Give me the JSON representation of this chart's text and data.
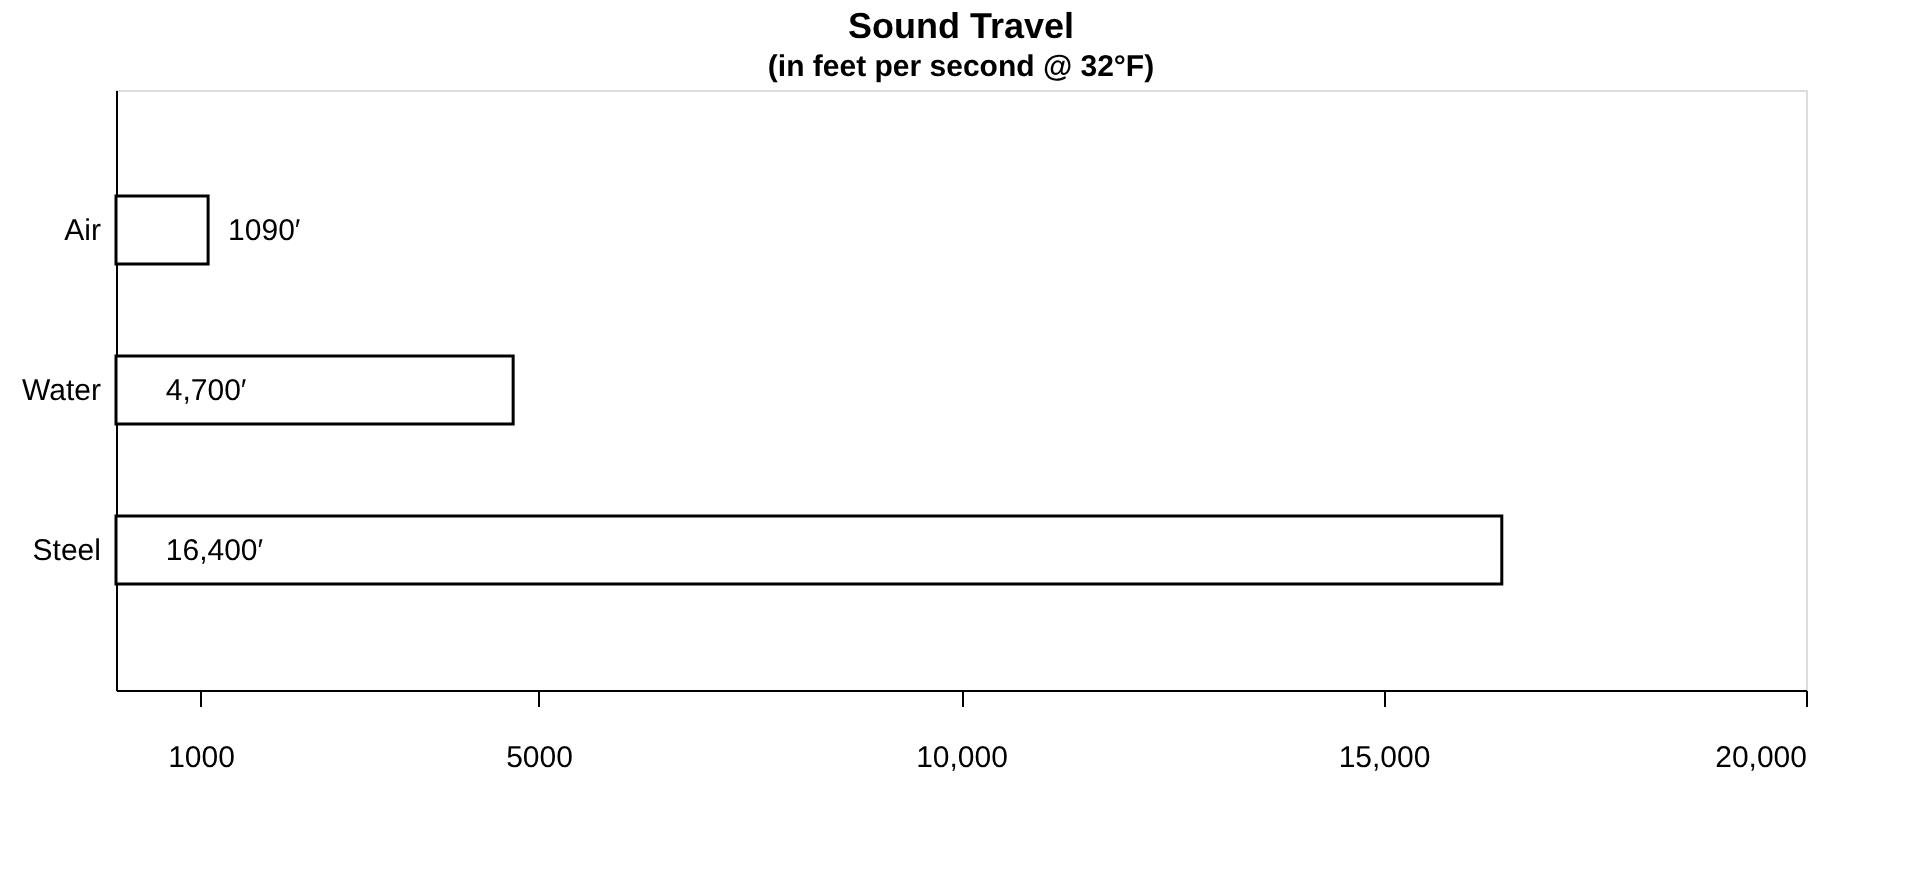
{
  "chart_data": {
    "type": "bar",
    "orientation": "horizontal",
    "title": "Sound Travel",
    "subtitle": "(in feet per second @ 32°F)",
    "categories": [
      "Air",
      "Water",
      "Steel"
    ],
    "values": [
      1090,
      4700,
      16400
    ],
    "value_labels": [
      "1090′",
      "4,700′",
      "16,400′"
    ],
    "color": "#ffffff",
    "xlim": [
      0,
      20000
    ],
    "xticks": [
      1000,
      5000,
      {
        "value": 10000,
        "label": "10,000"
      },
      {
        "value": 15000,
        "label": "15,000"
      },
      {
        "value": 20000,
        "label": "20,000"
      }
    ],
    "grid": false
  }
}
